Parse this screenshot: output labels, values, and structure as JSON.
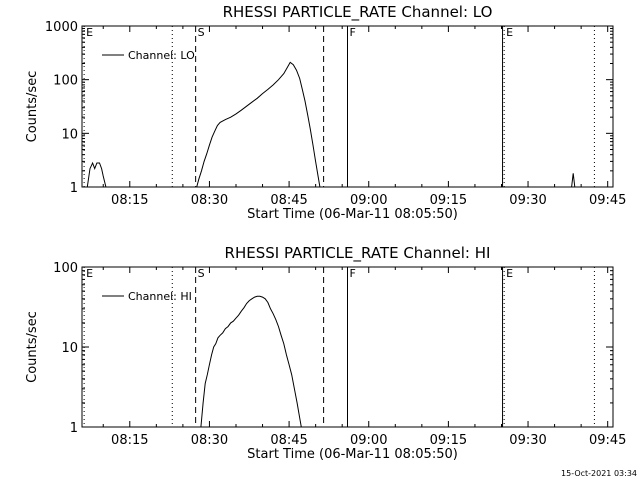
{
  "chart_data": [
    {
      "type": "line",
      "title": "RHESSI PARTICLE_RATE Channel: LO",
      "xlabel": "Start Time (06-Mar-11 08:05:50)",
      "ylabel": "Counts/sec",
      "yscale": "log",
      "ylim": [
        1,
        1000
      ],
      "xlim_min_after_0800": [
        6,
        106
      ],
      "xticks": [
        {
          "label": "08:15",
          "t": 15
        },
        {
          "label": "08:30",
          "t": 30
        },
        {
          "label": "08:45",
          "t": 45
        },
        {
          "label": "09:00",
          "t": 60
        },
        {
          "label": "09:15",
          "t": 75
        },
        {
          "label": "09:30",
          "t": 90
        },
        {
          "label": "09:45",
          "t": 105
        }
      ],
      "yticks": [
        {
          "label": "1",
          "v": 1
        },
        {
          "label": "10",
          "v": 10
        },
        {
          "label": "100",
          "v": 100
        },
        {
          "label": "1000",
          "v": 1000
        }
      ],
      "legend": {
        "label": "Channel: LO",
        "position": "top-left"
      },
      "grid": false,
      "markers": [
        {
          "label": "E",
          "t": 6.4,
          "style": "dotted"
        },
        {
          "label": "",
          "t": 23.0,
          "style": "dotted"
        },
        {
          "label": "S",
          "t": 27.4,
          "style": "dashed"
        },
        {
          "label": "",
          "t": 51.5,
          "style": "dashed"
        },
        {
          "label": "F",
          "t": 56.0,
          "style": "solid"
        },
        {
          "label": "E",
          "t": 85.5,
          "style": "dotted"
        },
        {
          "label": "",
          "t": 85.2,
          "style": "solid"
        },
        {
          "label": "",
          "t": 102.5,
          "style": "dotted"
        }
      ],
      "series": [
        {
          "name": "Channel: LO",
          "x": [
            7.0,
            7.5,
            8.0,
            8.4,
            8.8,
            9.3,
            9.7,
            10.0,
            10.5,
            11.0
          ],
          "y": [
            1.0,
            2.2,
            2.8,
            2.2,
            2.8,
            2.8,
            2.2,
            1.6,
            1.0,
            1.0
          ]
        },
        {
          "name": "Channel: LO",
          "x": [
            27.6,
            28.0,
            28.5,
            29.0,
            29.5,
            30.0,
            30.5,
            31.0,
            31.5,
            32.0,
            33.0,
            34.0,
            35.0,
            36.0,
            37.0,
            38.0,
            39.0,
            40.0,
            41.0,
            42.0,
            43.0,
            44.0,
            44.6,
            45.2,
            45.8,
            46.4,
            47.0,
            47.5,
            48.0,
            48.5,
            49.0,
            49.5,
            50.0,
            50.5,
            50.8
          ],
          "y": [
            1.0,
            1.4,
            2.0,
            3.0,
            4.2,
            6.0,
            8.5,
            11.0,
            14.0,
            16.0,
            18.0,
            20.0,
            23.0,
            27.0,
            32.0,
            38.0,
            45.0,
            55.0,
            66.0,
            80.0,
            100.0,
            130.0,
            165.0,
            210.0,
            190.0,
            150.0,
            105.0,
            65.0,
            40.0,
            22.0,
            12.0,
            6.0,
            3.0,
            1.5,
            1.0
          ]
        },
        {
          "name": "Channel: LO",
          "x": [
            98.2,
            98.5,
            98.8
          ],
          "y": [
            1.0,
            1.8,
            1.0
          ]
        }
      ]
    },
    {
      "type": "line",
      "title": "RHESSI PARTICLE_RATE Channel: HI",
      "xlabel": "Start Time (06-Mar-11 08:05:50)",
      "ylabel": "Counts/sec",
      "yscale": "log",
      "ylim": [
        1,
        100
      ],
      "xlim_min_after_0800": [
        6,
        106
      ],
      "xticks": [
        {
          "label": "08:15",
          "t": 15
        },
        {
          "label": "08:30",
          "t": 30
        },
        {
          "label": "08:45",
          "t": 45
        },
        {
          "label": "09:00",
          "t": 60
        },
        {
          "label": "09:15",
          "t": 75
        },
        {
          "label": "09:30",
          "t": 90
        },
        {
          "label": "09:45",
          "t": 105
        }
      ],
      "yticks": [
        {
          "label": "1",
          "v": 1
        },
        {
          "label": "10",
          "v": 10
        },
        {
          "label": "100",
          "v": 100
        }
      ],
      "legend": {
        "label": "Channel: HI",
        "position": "top-left"
      },
      "grid": false,
      "markers": [
        {
          "label": "E",
          "t": 6.4,
          "style": "dotted"
        },
        {
          "label": "",
          "t": 23.0,
          "style": "dotted"
        },
        {
          "label": "S",
          "t": 27.4,
          "style": "dashed"
        },
        {
          "label": "",
          "t": 51.5,
          "style": "dashed"
        },
        {
          "label": "F",
          "t": 56.0,
          "style": "solid"
        },
        {
          "label": "E",
          "t": 85.5,
          "style": "dotted"
        },
        {
          "label": "",
          "t": 85.2,
          "style": "solid"
        },
        {
          "label": "",
          "t": 102.5,
          "style": "dotted"
        }
      ],
      "series": [
        {
          "name": "Channel: HI",
          "x": [
            28.4,
            28.8,
            29.2,
            29.6,
            30.0,
            30.4,
            30.8,
            31.2,
            31.6,
            32.0,
            32.5,
            33.0,
            33.5,
            34.0,
            34.5,
            35.0,
            35.5,
            36.0,
            36.5,
            37.0,
            37.5,
            38.0,
            38.5,
            39.0,
            39.5,
            40.0,
            40.5,
            41.0,
            41.5,
            42.0,
            42.5,
            43.0,
            43.5,
            44.0,
            44.5,
            45.0,
            45.5,
            46.0,
            46.5,
            47.0,
            47.3
          ],
          "y": [
            1.0,
            2.0,
            3.5,
            4.5,
            6.0,
            8.0,
            10.0,
            11.0,
            13.0,
            14.0,
            15.0,
            17.0,
            18.0,
            20.0,
            21.0,
            23.0,
            25.0,
            28.0,
            31.0,
            35.0,
            38.0,
            40.0,
            42.0,
            43.0,
            43.0,
            42.0,
            40.0,
            36.0,
            30.0,
            26.0,
            22.0,
            18.0,
            14.0,
            11.0,
            8.0,
            6.0,
            4.5,
            3.0,
            2.0,
            1.3,
            1.0
          ]
        }
      ]
    }
  ],
  "footer": {
    "timestamp": "15-Oct-2021 03:34"
  }
}
